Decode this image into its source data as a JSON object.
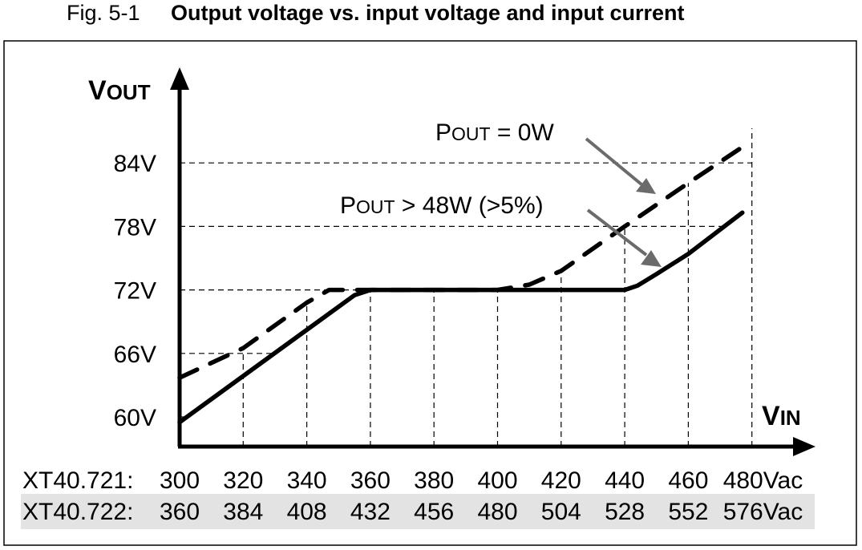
{
  "figure": {
    "number": "Fig. 5-1",
    "title": "Output voltage vs. input voltage and input current"
  },
  "chart_data": {
    "type": "line",
    "title": "Output voltage vs. input voltage and input current",
    "ylabel": {
      "main": "V",
      "sub": "OUT"
    },
    "xlabel": {
      "main": "V",
      "sub": "IN"
    },
    "ylim": [
      57.2,
      88
    ],
    "xlim": [
      300,
      490
    ],
    "y_ticks": [
      60,
      66,
      72,
      78,
      84
    ],
    "y_tick_labels": [
      "60V",
      "66V",
      "72V",
      "78V",
      "84V"
    ],
    "x_ticks": [
      300,
      320,
      340,
      360,
      380,
      400,
      420,
      440,
      460,
      480
    ],
    "x_rows": [
      {
        "label": "XT40.721:",
        "ticks": [
          "300",
          "320",
          "340",
          "360",
          "380",
          "400",
          "420",
          "440",
          "460",
          "480Vac"
        ],
        "highlight": false
      },
      {
        "label": "XT40.722:",
        "ticks": [
          "360",
          "384",
          "408",
          "432",
          "456",
          "480",
          "504",
          "528",
          "552",
          "576Vac"
        ],
        "highlight": true
      }
    ],
    "grid": true,
    "series": [
      {
        "name": "POUT = 0W",
        "label": {
          "main": "P",
          "sub": "OUT",
          "rest": " = 0W"
        },
        "style": "dashed",
        "x": [
          300,
          320,
          340,
          347,
          400,
          410,
          420,
          440,
          460,
          476
        ],
        "y": [
          63.7,
          66.5,
          70.8,
          72,
          72,
          72.5,
          73.8,
          78,
          82.1,
          85.3
        ]
      },
      {
        "name": "POUT > 48W (>5%)",
        "label": {
          "main": "P",
          "sub": "OUT",
          "rest": " > 48W (>5%)"
        },
        "style": "solid",
        "x": [
          300,
          355,
          360,
          440,
          444,
          450,
          460,
          477
        ],
        "y": [
          59.5,
          71.5,
          72,
          72,
          72.4,
          73.5,
          75.4,
          79.3
        ]
      }
    ],
    "colors": {
      "curve": "#000000",
      "annotation_arrow": "#6b6b6b",
      "row_highlight": "#e3e3e3"
    }
  }
}
